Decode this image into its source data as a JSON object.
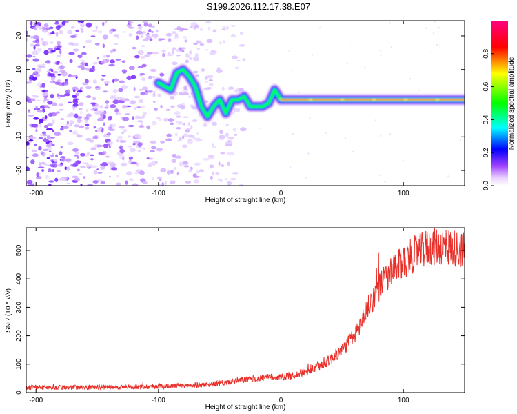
{
  "title": "S199.2026.112.17.38.E07",
  "chart_data": [
    {
      "type": "heatmap",
      "title": "S199.2026.112.17.38.E07",
      "xlabel": "Height of straight line (km)",
      "ylabel": "Frequency (Hz)",
      "xlim": [
        -208,
        150
      ],
      "ylim": [
        -24.5,
        24.5
      ],
      "xticks": [
        -200,
        -100,
        0,
        100
      ],
      "yticks": [
        -20,
        -10,
        0,
        10,
        20
      ],
      "xtick_labels": [
        "-200",
        "-100",
        "0",
        "100"
      ],
      "ytick_labels": [
        "-20",
        "-10",
        "0",
        "10",
        "20"
      ],
      "grid": false,
      "ridge": {
        "description": "dominant frequency ridge vs height",
        "x": [
          -100,
          -95,
          -90,
          -85,
          -80,
          -75,
          -70,
          -65,
          -60,
          -55,
          -50,
          -45,
          -40,
          -35,
          -30,
          -25,
          -20,
          -15,
          -10,
          -5,
          0,
          10,
          20,
          40,
          60,
          80,
          90,
          100,
          120,
          140,
          150
        ],
        "y": [
          6,
          5,
          4,
          9,
          10,
          8,
          5,
          -1,
          -4,
          -1,
          1,
          -3,
          1,
          1,
          2,
          -1,
          -1,
          -1,
          0,
          4,
          1,
          1,
          1,
          1,
          1,
          1,
          1,
          1,
          1,
          1,
          1
        ]
      },
      "colorbar": {
        "label": "Normalized spectral amplitude",
        "range": [
          0,
          1
        ],
        "ticks": [
          0.0,
          0.2,
          0.4,
          0.6,
          0.8
        ],
        "tick_labels": [
          "0.0",
          "0.2",
          "0.4",
          "0.6",
          "0.8"
        ],
        "colors": [
          "#ffffff",
          "#e8ccff",
          "#a040ff",
          "#0000ff",
          "#00ffff",
          "#00ff00",
          "#ffff00",
          "#ff0000",
          "#ff0080"
        ]
      }
    },
    {
      "type": "line",
      "xlabel": "Height of straight line (km)",
      "ylabel": "SNR (10 * v/v)",
      "xlim": [
        -208,
        150
      ],
      "ylim": [
        0,
        580
      ],
      "xticks": [
        -200,
        -100,
        0,
        100
      ],
      "yticks": [
        0,
        100,
        200,
        300,
        400,
        500
      ],
      "xtick_labels": [
        "-200",
        "-100",
        "0",
        "100"
      ],
      "ytick_labels": [
        "0",
        "100",
        "200",
        "300",
        "400",
        "500"
      ],
      "grid": false,
      "series": [
        {
          "name": "SNR",
          "color": "#e8302a",
          "x": [
            -208,
            -180,
            -150,
            -120,
            -100,
            -80,
            -60,
            -50,
            -40,
            -30,
            -20,
            -10,
            0,
            10,
            20,
            30,
            40,
            50,
            60,
            65,
            70,
            75,
            80,
            85,
            90,
            95,
            100,
            110,
            120,
            130,
            140,
            150
          ],
          "y": [
            18,
            18,
            19,
            20,
            22,
            24,
            28,
            32,
            40,
            45,
            50,
            53,
            55,
            60,
            70,
            90,
            115,
            150,
            200,
            240,
            290,
            330,
            370,
            400,
            420,
            440,
            460,
            490,
            510,
            515,
            510,
            500
          ]
        }
      ]
    }
  ]
}
